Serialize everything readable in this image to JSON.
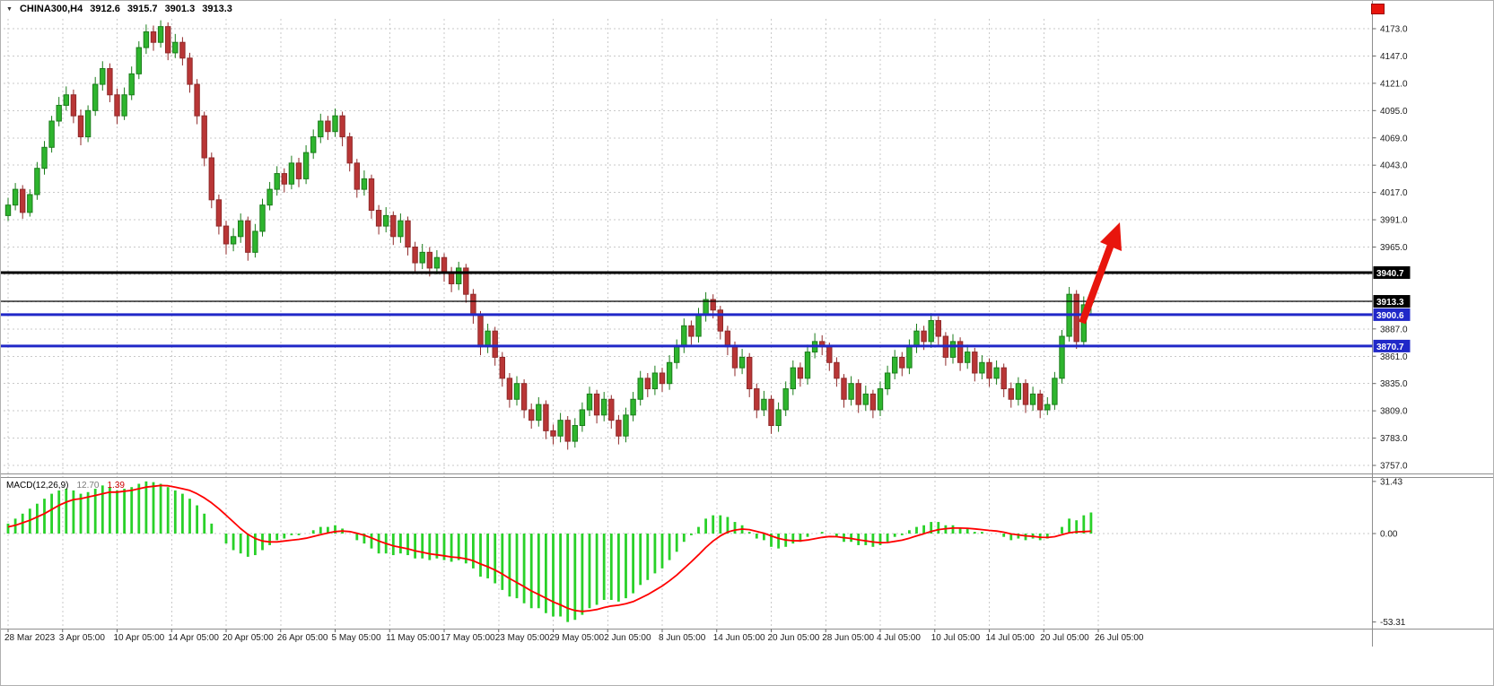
{
  "header": {
    "symbol_period": "CHINA300,H4",
    "open": "3912.6",
    "high": "3915.7",
    "low": "3901.3",
    "close": "3913.3"
  },
  "macd_header": {
    "label": "MACD(12,26,9)",
    "main_value": "12.70",
    "signal_value": "1.39"
  },
  "colors": {
    "bull": "#2eb52e",
    "bull_border": "#1b7d1b",
    "bear": "#b93636",
    "bear_border": "#8f2a2a",
    "macd_hist": "#29d129",
    "macd_signal": "#ff0000",
    "grid": "#c9c9c9",
    "separator": "#8e8e8e",
    "arrow": "#e8150d",
    "level_black": "#000000",
    "level_blue": "#2028c8"
  },
  "chart_data": {
    "type": "candlestick",
    "symbol": "CHINA300",
    "timeframe": "H4",
    "ylim_price": [
      3757.0,
      4173.0
    ],
    "ylim_macd": [
      -53.31,
      31.43
    ],
    "macd_params": {
      "fast": 12,
      "slow": 26,
      "signal": 9
    },
    "price_ticks": [
      "4173.0",
      "4147.0",
      "4121.0",
      "4095.0",
      "4069.0",
      "4043.0",
      "4017.0",
      "3991.0",
      "3965.0",
      "3887.0",
      "3861.0",
      "3835.0",
      "3809.0",
      "3783.0",
      "3757.0"
    ],
    "grid_levels": [
      4173,
      4147,
      4121,
      4095,
      4069,
      4043,
      4017,
      3991,
      3965,
      3939,
      3913,
      3887,
      3861,
      3835,
      3809,
      3783,
      3757
    ],
    "macd_ticks": [
      {
        "v": 31.43,
        "label": "31.43"
      },
      {
        "v": 0,
        "label": "0.00"
      },
      {
        "v": -53.31,
        "label": "-53.31"
      }
    ],
    "date_labels": [
      "28 Mar 2023",
      "3 Apr 05:00",
      "10 Apr 05:00",
      "14 Apr 05:00",
      "20 Apr 05:00",
      "26 Apr 05:00",
      "5 May 05:00",
      "11 May 05:00",
      "17 May 05:00",
      "23 May 05:00",
      "29 May 05:00",
      "2 Jun 05:00",
      "8 Jun 05:00",
      "14 Jun 05:00",
      "20 Jun 05:00",
      "28 Jun 05:00",
      "4 Jul 05:00",
      "10 Jul 05:00",
      "14 Jul 05:00",
      "20 Jul 05:00",
      "26 Jul 05:00"
    ],
    "levels": [
      {
        "name": "resistance-line-black",
        "value": 3940.7,
        "label": "3940.7",
        "color": "#000000",
        "badge": "#000000",
        "line_width": 3
      },
      {
        "name": "bid-price-line",
        "value": 3913.3,
        "label": "3913.3",
        "color": "#000000",
        "badge": "#000000",
        "line_width": 1.2
      },
      {
        "name": "support-line-upper-blue",
        "value": 3900.6,
        "label": "3900.6",
        "color": "#2028c8",
        "badge": "#2028c8",
        "line_width": 3
      },
      {
        "name": "support-line-lower-blue",
        "value": 3870.7,
        "label": "3870.7",
        "color": "#2028c8",
        "badge": "#2028c8",
        "line_width": 3
      }
    ],
    "candles": [
      [
        3995,
        4012,
        3990,
        4005
      ],
      [
        4005,
        4026,
        4000,
        4020
      ],
      [
        4020,
        4024,
        3992,
        3998
      ],
      [
        3998,
        4020,
        3994,
        4015
      ],
      [
        4015,
        4046,
        4010,
        4040
      ],
      [
        4040,
        4066,
        4034,
        4060
      ],
      [
        4060,
        4090,
        4055,
        4085
      ],
      [
        4085,
        4108,
        4080,
        4100
      ],
      [
        4100,
        4118,
        4095,
        4110
      ],
      [
        4110,
        4115,
        4083,
        4090
      ],
      [
        4090,
        4096,
        4062,
        4070
      ],
      [
        4070,
        4100,
        4065,
        4095
      ],
      [
        4095,
        4127,
        4090,
        4120
      ],
      [
        4120,
        4142,
        4114,
        4135
      ],
      [
        4135,
        4140,
        4103,
        4110
      ],
      [
        4110,
        4116,
        4082,
        4090
      ],
      [
        4090,
        4117,
        4086,
        4110
      ],
      [
        4110,
        4137,
        4105,
        4130
      ],
      [
        4130,
        4161,
        4125,
        4155
      ],
      [
        4155,
        4177,
        4149,
        4170
      ],
      [
        4170,
        4176,
        4152,
        4160
      ],
      [
        4160,
        4181,
        4155,
        4175
      ],
      [
        4175,
        4179,
        4143,
        4150
      ],
      [
        4150,
        4168,
        4145,
        4160
      ],
      [
        4160,
        4165,
        4138,
        4145
      ],
      [
        4145,
        4150,
        4112,
        4120
      ],
      [
        4120,
        4125,
        4082,
        4090
      ],
      [
        4090,
        4094,
        4042,
        4050
      ],
      [
        4050,
        4055,
        4002,
        4010
      ],
      [
        4010,
        4015,
        3977,
        3985
      ],
      [
        3985,
        3990,
        3958,
        3968
      ],
      [
        3968,
        3983,
        3961,
        3975
      ],
      [
        3975,
        3997,
        3969,
        3990
      ],
      [
        3990,
        3994,
        3952,
        3960
      ],
      [
        3960,
        3987,
        3955,
        3980
      ],
      [
        3980,
        4011,
        3975,
        4005
      ],
      [
        4005,
        4027,
        4000,
        4020
      ],
      [
        4020,
        4042,
        4014,
        4035
      ],
      [
        4035,
        4040,
        4017,
        4025
      ],
      [
        4025,
        4052,
        4020,
        4045
      ],
      [
        4045,
        4050,
        4022,
        4030
      ],
      [
        4030,
        4062,
        4025,
        4055
      ],
      [
        4055,
        4077,
        4049,
        4070
      ],
      [
        4070,
        4092,
        4064,
        4085
      ],
      [
        4085,
        4090,
        4067,
        4075
      ],
      [
        4075,
        4097,
        4070,
        4090
      ],
      [
        4090,
        4094,
        4061,
        4070
      ],
      [
        4070,
        4074,
        4037,
        4045
      ],
      [
        4045,
        4049,
        4012,
        4020
      ],
      [
        4020,
        4038,
        4014,
        4030
      ],
      [
        4030,
        4034,
        3992,
        4000
      ],
      [
        4000,
        4005,
        3977,
        3985
      ],
      [
        3985,
        4003,
        3979,
        3995
      ],
      [
        3995,
        3999,
        3967,
        3975
      ],
      [
        3975,
        3997,
        3969,
        3990
      ],
      [
        3990,
        3994,
        3957,
        3965
      ],
      [
        3965,
        3970,
        3942,
        3950
      ],
      [
        3950,
        3968,
        3944,
        3960
      ],
      [
        3960,
        3965,
        3937,
        3945
      ],
      [
        3945,
        3962,
        3939,
        3955
      ],
      [
        3955,
        3959,
        3932,
        3940
      ],
      [
        3940,
        3946,
        3922,
        3930
      ],
      [
        3930,
        3951,
        3924,
        3945
      ],
      [
        3945,
        3949,
        3912,
        3920
      ],
      [
        3920,
        3925,
        3892,
        3900
      ],
      [
        3900,
        3904,
        3862,
        3870
      ],
      [
        3870,
        3892,
        3864,
        3885
      ],
      [
        3885,
        3889,
        3852,
        3860
      ],
      [
        3860,
        3865,
        3832,
        3840
      ],
      [
        3840,
        3845,
        3812,
        3820
      ],
      [
        3820,
        3842,
        3814,
        3835
      ],
      [
        3835,
        3839,
        3802,
        3810
      ],
      [
        3810,
        3816,
        3792,
        3800
      ],
      [
        3800,
        3822,
        3794,
        3815
      ],
      [
        3815,
        3819,
        3782,
        3790
      ],
      [
        3790,
        3796,
        3777,
        3785
      ],
      [
        3785,
        3807,
        3779,
        3800
      ],
      [
        3800,
        3804,
        3772,
        3780
      ],
      [
        3780,
        3802,
        3774,
        3795
      ],
      [
        3795,
        3817,
        3789,
        3810
      ],
      [
        3810,
        3832,
        3804,
        3825
      ],
      [
        3825,
        3829,
        3797,
        3805
      ],
      [
        3805,
        3827,
        3799,
        3820
      ],
      [
        3820,
        3824,
        3792,
        3800
      ],
      [
        3800,
        3805,
        3777,
        3785
      ],
      [
        3785,
        3812,
        3779,
        3805
      ],
      [
        3805,
        3827,
        3799,
        3820
      ],
      [
        3820,
        3847,
        3814,
        3840
      ],
      [
        3840,
        3845,
        3822,
        3830
      ],
      [
        3830,
        3852,
        3824,
        3845
      ],
      [
        3845,
        3850,
        3827,
        3835
      ],
      [
        3835,
        3862,
        3829,
        3855
      ],
      [
        3855,
        3877,
        3849,
        3870
      ],
      [
        3870,
        3897,
        3864,
        3890
      ],
      [
        3890,
        3895,
        3872,
        3880
      ],
      [
        3880,
        3907,
        3874,
        3900
      ],
      [
        3900,
        3922,
        3894,
        3915
      ],
      [
        3915,
        3920,
        3897,
        3905
      ],
      [
        3905,
        3909,
        3877,
        3885
      ],
      [
        3885,
        3890,
        3862,
        3870
      ],
      [
        3870,
        3875,
        3842,
        3850
      ],
      [
        3850,
        3868,
        3844,
        3860
      ],
      [
        3860,
        3864,
        3822,
        3830
      ],
      [
        3830,
        3835,
        3802,
        3810
      ],
      [
        3810,
        3828,
        3804,
        3820
      ],
      [
        3820,
        3824,
        3787,
        3795
      ],
      [
        3795,
        3817,
        3789,
        3810
      ],
      [
        3810,
        3837,
        3804,
        3830
      ],
      [
        3830,
        3857,
        3824,
        3850
      ],
      [
        3850,
        3855,
        3832,
        3840
      ],
      [
        3840,
        3872,
        3834,
        3865
      ],
      [
        3865,
        3883,
        3859,
        3875
      ],
      [
        3875,
        3881,
        3862,
        3870
      ],
      [
        3870,
        3874,
        3847,
        3855
      ],
      [
        3855,
        3860,
        3832,
        3840
      ],
      [
        3840,
        3844,
        3812,
        3820
      ],
      [
        3820,
        3842,
        3814,
        3835
      ],
      [
        3835,
        3839,
        3807,
        3815
      ],
      [
        3815,
        3833,
        3809,
        3825
      ],
      [
        3825,
        3829,
        3802,
        3810
      ],
      [
        3810,
        3837,
        3804,
        3830
      ],
      [
        3830,
        3852,
        3824,
        3845
      ],
      [
        3845,
        3867,
        3839,
        3860
      ],
      [
        3860,
        3865,
        3842,
        3850
      ],
      [
        3850,
        3877,
        3844,
        3870
      ],
      [
        3870,
        3892,
        3864,
        3885
      ],
      [
        3885,
        3890,
        3867,
        3875
      ],
      [
        3875,
        3902,
        3869,
        3895
      ],
      [
        3895,
        3899,
        3872,
        3880
      ],
      [
        3880,
        3884,
        3852,
        3860
      ],
      [
        3860,
        3882,
        3854,
        3875
      ],
      [
        3875,
        3879,
        3847,
        3855
      ],
      [
        3855,
        3872,
        3849,
        3865
      ],
      [
        3865,
        3869,
        3837,
        3845
      ],
      [
        3845,
        3862,
        3839,
        3855
      ],
      [
        3855,
        3859,
        3832,
        3840
      ],
      [
        3840,
        3857,
        3834,
        3850
      ],
      [
        3850,
        3854,
        3822,
        3830
      ],
      [
        3830,
        3836,
        3812,
        3820
      ],
      [
        3820,
        3841,
        3814,
        3835
      ],
      [
        3835,
        3839,
        3807,
        3815
      ],
      [
        3815,
        3832,
        3809,
        3825
      ],
      [
        3825,
        3829,
        3802,
        3810
      ],
      [
        3810,
        3822,
        3805,
        3815
      ],
      [
        3815,
        3846,
        3810,
        3840
      ],
      [
        3840,
        3886,
        3835,
        3880
      ],
      [
        3880,
        3927,
        3875,
        3920
      ],
      [
        3920,
        3924,
        3868,
        3875
      ],
      [
        3875,
        3918,
        3870,
        3910
      ],
      [
        3912.6,
        3915.7,
        3901.3,
        3913.3
      ]
    ],
    "macd": {
      "main": [
        6,
        9,
        12,
        15,
        18,
        21,
        24,
        26,
        27,
        26,
        24,
        25,
        27,
        29,
        28,
        26,
        27,
        28,
        30,
        31.43,
        31,
        30,
        28,
        26,
        24,
        21,
        17,
        12,
        6,
        0,
        -6,
        -10,
        -12,
        -14,
        -13,
        -10,
        -7,
        -4,
        -3,
        -1,
        -1,
        0,
        2,
        4,
        4,
        5,
        3,
        0,
        -4,
        -6,
        -9,
        -12,
        -12,
        -13,
        -12,
        -13,
        -15,
        -15,
        -16,
        -15,
        -16,
        -17,
        -16,
        -18,
        -21,
        -26,
        -27,
        -30,
        -34,
        -38,
        -39,
        -42,
        -45,
        -45,
        -48,
        -50,
        -50,
        -53.31,
        -52,
        -49,
        -45,
        -43,
        -40,
        -40,
        -41,
        -39,
        -36,
        -31,
        -28,
        -24,
        -21,
        -16,
        -11,
        -5,
        -1,
        4,
        9,
        11,
        11,
        10,
        7,
        5,
        1,
        -3,
        -4,
        -8,
        -9,
        -8,
        -6,
        -5,
        -2,
        0,
        1,
        0,
        -2,
        -5,
        -5,
        -7,
        -7,
        -8,
        -7,
        -5,
        -2,
        -1,
        2,
        4,
        5,
        7,
        7,
        5,
        5,
        3,
        3,
        1,
        1,
        0,
        0,
        -2,
        -4,
        -3,
        -4,
        -3,
        -4,
        -3,
        0,
        4,
        9,
        8,
        11,
        12.7
      ],
      "signal": [
        4,
        5,
        6.5,
        8,
        10,
        12,
        14.5,
        17,
        19,
        20.5,
        21,
        22,
        23,
        24,
        25,
        25,
        25.5,
        26,
        27,
        28,
        28.5,
        29,
        28.8,
        28,
        27,
        26,
        24,
        21.5,
        18.5,
        15,
        11,
        7,
        3,
        -0.5,
        -3,
        -4.5,
        -5,
        -5,
        -4.5,
        -4,
        -3.5,
        -2.8,
        -1.8,
        -0.7,
        0.3,
        1.2,
        1.5,
        1.2,
        0.2,
        -1,
        -2.6,
        -4.5,
        -6,
        -7.4,
        -8.3,
        -9.2,
        -10.4,
        -11.3,
        -12.2,
        -12.8,
        -13.4,
        -14.1,
        -14.5,
        -15.2,
        -16.4,
        -18.3,
        -20,
        -22,
        -24.4,
        -27.1,
        -29.5,
        -32,
        -34.6,
        -36.7,
        -39,
        -41.2,
        -43,
        -45,
        -46.4,
        -46.9,
        -46.5,
        -45.8,
        -44.6,
        -43.7,
        -43.2,
        -42.3,
        -41,
        -39,
        -36.8,
        -34.2,
        -31.6,
        -28.5,
        -25,
        -21,
        -17,
        -12.8,
        -8.4,
        -4.5,
        -1.4,
        0.9,
        2.1,
        2.7,
        2.4,
        1.3,
        0.2,
        -1.4,
        -2.9,
        -3.9,
        -4.3,
        -4.4,
        -3.9,
        -3.1,
        -2.3,
        -1.8,
        -1.9,
        -2.5,
        -3,
        -3.8,
        -4.4,
        -5.1,
        -5.5,
        -5.4,
        -4.7,
        -4,
        -2.8,
        -1.4,
        -0.1,
        1.3,
        2.4,
        2.9,
        3.3,
        3.3,
        3.2,
        2.8,
        2.4,
        1.9,
        1.5,
        0.8,
        -0.2,
        -0.8,
        -1.4,
        -1.7,
        -2.2,
        -2.4,
        -1.9,
        -0.7,
        0.5,
        1.0,
        1.2,
        1.39
      ]
    },
    "annotations": [
      {
        "name": "trend-arrow",
        "shape": "arrow",
        "direction": "up-right"
      }
    ]
  }
}
